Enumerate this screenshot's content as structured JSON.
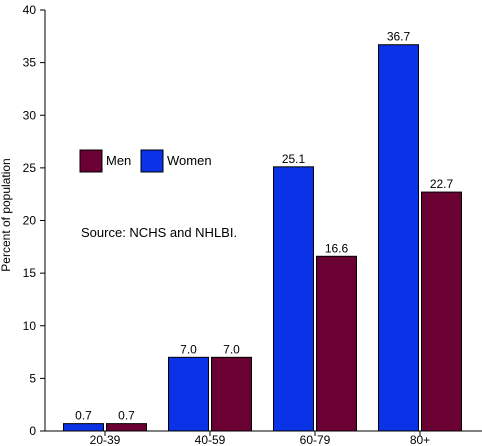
{
  "chart_data": {
    "type": "bar",
    "title": "",
    "xlabel": "",
    "ylabel": "Percent of population",
    "categories": [
      "20-39",
      "40-59",
      "60-79",
      "80+"
    ],
    "series": [
      {
        "name": "Women",
        "color": "#0a32e6",
        "values": [
          0.7,
          7.0,
          25.1,
          36.7
        ],
        "labels": [
          "0.7",
          "7.0",
          "25.1",
          "36.7"
        ]
      },
      {
        "name": "Men",
        "color": "#6b0033",
        "values": [
          0.7,
          7.0,
          16.6,
          22.7
        ],
        "labels": [
          "0.7",
          "7.0",
          "16.6",
          "22.7"
        ]
      }
    ],
    "ylim": [
      0,
      40
    ],
    "yticks": [
      "0",
      "5",
      "10",
      "15",
      "20",
      "25",
      "30",
      "35",
      "40"
    ],
    "legend": {
      "placement": "upper-left",
      "order": [
        "Men",
        "Women"
      ]
    },
    "annotations": [
      "Source: NCHS and NHLBI."
    ],
    "grid": false
  }
}
